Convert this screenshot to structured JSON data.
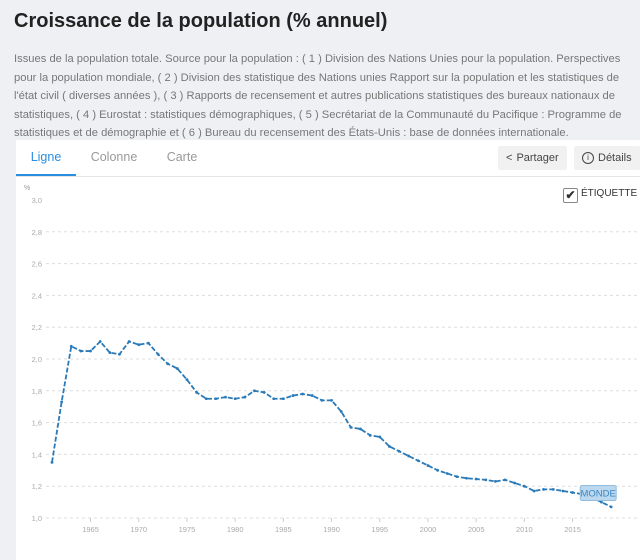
{
  "title": "Croissance de la population (% annuel)",
  "description": "Issues de la population totale. Source pour la population : ( 1 ) Division des Nations Unies pour la population. Perspectives pour la population mondiale, ( 2 ) Division des statistique des Nations unies Rapport sur la population et les statistiques de l'état civil ( diverses années ), ( 3 ) Rapports de recensement et autres publications statistiques des bureaux nationaux de statistiques, ( 4 ) Eurostat : statistiques démographiques, ( 5 ) Secrétariat de la Communauté du Pacifique : Programme de statistiques et de démographie et ( 6 ) Bureau du recensement des États-Unis : base de données internationale.",
  "tabs": [
    {
      "label": "Ligne",
      "active": true
    },
    {
      "label": "Colonne"
    },
    {
      "label": "Carte"
    }
  ],
  "buttons": {
    "share": "Partager",
    "details": "Détails"
  },
  "label_toggle": {
    "label": "ÉTIQUETTE",
    "checked": true
  },
  "colors": {
    "accent": "#2a8ee0",
    "series": "#2a7ab8"
  },
  "chart_data": {
    "type": "line",
    "ylabel": "%",
    "ylim": [
      1.0,
      3.0
    ],
    "yticks": [
      "1,0",
      "1,2",
      "1,4",
      "1,6",
      "1,8",
      "2,0",
      "2,2",
      "2,4",
      "2,6",
      "2,8",
      "3,0"
    ],
    "xticks": [
      "1965",
      "1970",
      "1975",
      "1980",
      "1985",
      "1990",
      "1995",
      "2000",
      "2005",
      "2010",
      "2015"
    ],
    "grid": true,
    "series": [
      {
        "name": "MONDE",
        "x": [
          1961,
          1962,
          1963,
          1964,
          1965,
          1966,
          1967,
          1968,
          1969,
          1970,
          1971,
          1972,
          1973,
          1974,
          1975,
          1976,
          1977,
          1978,
          1979,
          1980,
          1981,
          1982,
          1983,
          1984,
          1985,
          1986,
          1987,
          1988,
          1989,
          1990,
          1991,
          1992,
          1993,
          1994,
          1995,
          1996,
          1997,
          1998,
          1999,
          2000,
          2001,
          2002,
          2003,
          2004,
          2005,
          2006,
          2007,
          2008,
          2009,
          2010,
          2011,
          2012,
          2013,
          2014,
          2015,
          2016,
          2017,
          2018,
          2019
        ],
        "values": [
          1.35,
          1.73,
          2.08,
          2.05,
          2.05,
          2.11,
          2.04,
          2.03,
          2.11,
          2.09,
          2.1,
          2.03,
          1.97,
          1.94,
          1.87,
          1.79,
          1.75,
          1.75,
          1.76,
          1.75,
          1.76,
          1.8,
          1.79,
          1.75,
          1.75,
          1.77,
          1.78,
          1.77,
          1.74,
          1.74,
          1.67,
          1.57,
          1.56,
          1.52,
          1.51,
          1.45,
          1.42,
          1.39,
          1.36,
          1.33,
          1.3,
          1.28,
          1.26,
          1.25,
          1.245,
          1.24,
          1.23,
          1.24,
          1.22,
          1.2,
          1.17,
          1.18,
          1.18,
          1.17,
          1.16,
          1.15,
          1.13,
          1.1,
          1.07
        ]
      }
    ]
  }
}
